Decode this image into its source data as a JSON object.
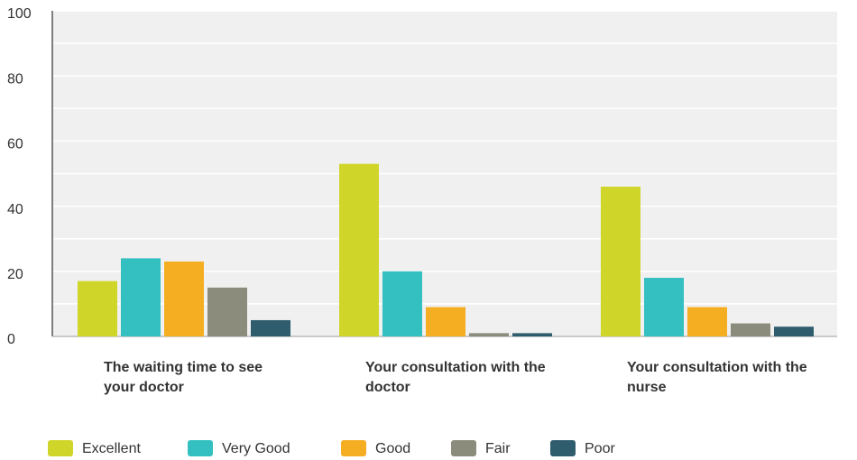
{
  "chart_data": {
    "type": "bar",
    "categories": [
      "The waiting time to see your doctor",
      "Your consultation with the doctor",
      "Your consultation with the nurse"
    ],
    "series": [
      {
        "name": "Excellent",
        "color": "#d0d52a",
        "values": [
          17,
          53,
          46
        ]
      },
      {
        "name": "Very Good",
        "color": "#34bfc0",
        "values": [
          24,
          20,
          18
        ]
      },
      {
        "name": "Good",
        "color": "#f5ae22",
        "values": [
          23,
          9,
          9
        ]
      },
      {
        "name": "Fair",
        "color": "#8b8c7b",
        "values": [
          15,
          1,
          4
        ]
      },
      {
        "name": "Poor",
        "color": "#2f5d6d",
        "values": [
          5,
          1,
          3
        ]
      }
    ],
    "ylim": [
      0,
      100
    ],
    "yticks": [
      0,
      20,
      40,
      60,
      80,
      100
    ],
    "grid_lines": [
      10,
      20,
      30,
      40,
      50,
      60,
      70,
      80,
      90,
      100
    ],
    "legend": "bottom"
  }
}
